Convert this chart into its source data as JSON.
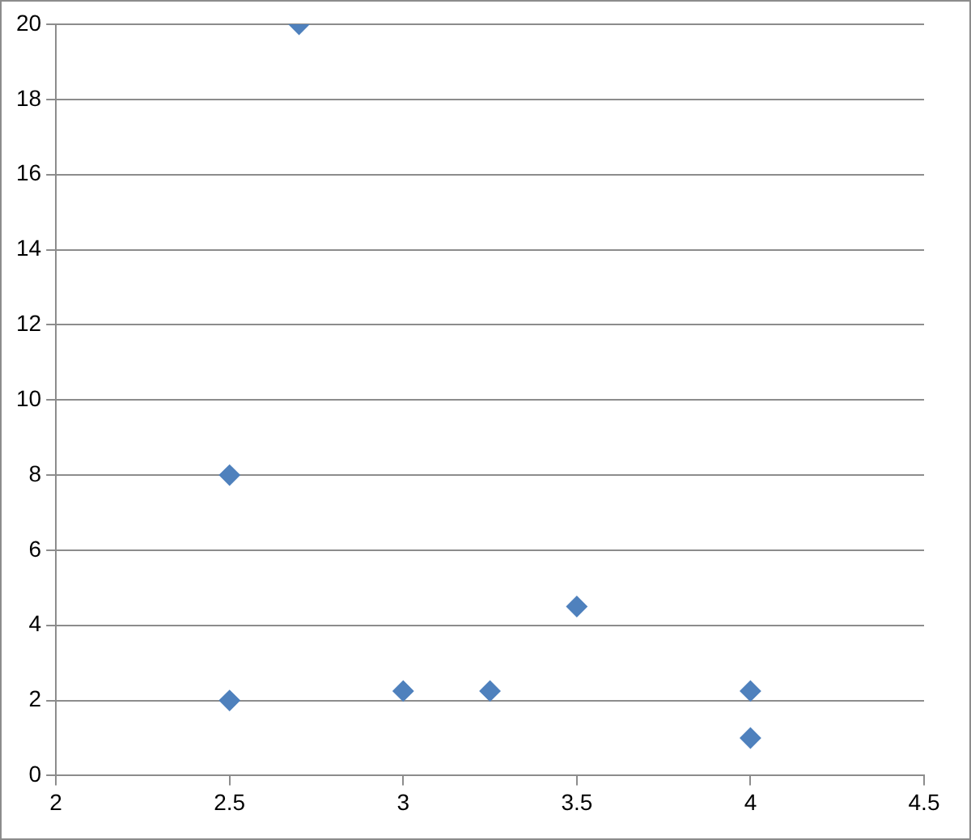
{
  "chart_data": {
    "type": "scatter",
    "x": [
      2.5,
      2.5,
      2.7,
      3,
      3.25,
      3.5,
      4,
      4
    ],
    "values": [
      8,
      2,
      20,
      2.25,
      2.25,
      4.5,
      2.25,
      1
    ],
    "color": "#4f81bd",
    "marker": "diamond",
    "grid": "y",
    "legend": false,
    "xlim": [
      2,
      4.5
    ],
    "xticks": [
      2,
      2.5,
      3,
      3.5,
      4,
      4.5
    ],
    "ylim": [
      0,
      20
    ],
    "yticks": [
      0,
      2,
      4,
      6,
      8,
      10,
      12,
      14,
      16,
      18,
      20
    ]
  }
}
